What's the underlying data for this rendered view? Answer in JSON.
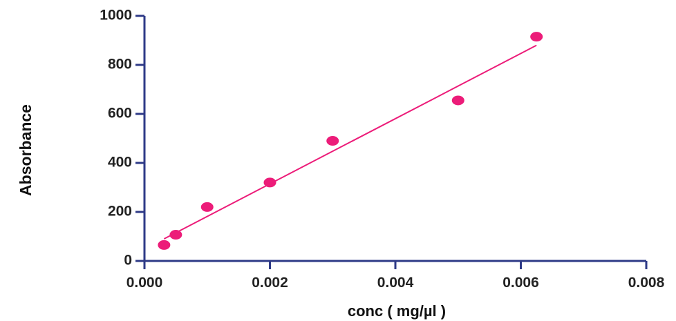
{
  "chart_data": {
    "type": "scatter",
    "title": "",
    "xlabel": "conc ( mg/µl )",
    "ylabel": "Absorbance",
    "xlim": [
      0.0,
      0.008
    ],
    "ylim": [
      0,
      1000
    ],
    "xticks": [
      "0.000",
      "0.002",
      "0.004",
      "0.006",
      "0.008"
    ],
    "yticks": [
      "0",
      "200",
      "400",
      "600",
      "800",
      "1000"
    ],
    "grid": false,
    "legend": "none",
    "series": [
      {
        "points": [
          {
            "x": 0.0003125,
            "y": 65
          },
          {
            "x": 0.0005,
            "y": 107
          },
          {
            "x": 0.001,
            "y": 220
          },
          {
            "x": 0.002,
            "y": 320
          },
          {
            "x": 0.003,
            "y": 490
          },
          {
            "x": 0.005,
            "y": 655
          },
          {
            "x": 0.00625,
            "y": 915
          }
        ],
        "fit_line": {
          "x": [
            0.0003125,
            0.00625
          ],
          "y": [
            90,
            880
          ]
        }
      }
    ],
    "colors": {
      "points": "#ec1c79",
      "fit_line": "#ec1c79",
      "axes": "#2e3a87"
    }
  }
}
